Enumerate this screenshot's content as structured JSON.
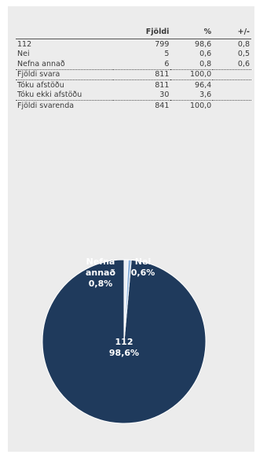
{
  "table": {
    "headers": [
      "",
      "Fjöldi",
      "%",
      "+/-"
    ],
    "rows": [
      {
        "label": "112",
        "count": "799",
        "pct": "98,6",
        "pm": "0,8"
      },
      {
        "label": "Nei",
        "count": "5",
        "pct": "0,6",
        "pm": "0,5"
      },
      {
        "label": "Nefna annað",
        "count": "6",
        "pct": "0,8",
        "pm": "0,6"
      },
      {
        "label": "Fjöldi svara",
        "count": "811",
        "pct": "100,0",
        "pm": ""
      },
      {
        "label": "Tóku afstöðu",
        "count": "811",
        "pct": "96,4",
        "pm": ""
      },
      {
        "label": "Tóku ekki afstöðu",
        "count": "30",
        "pct": "3,6",
        "pm": ""
      },
      {
        "label": "Fjöldi svarenda",
        "count": "841",
        "pct": "100,0",
        "pm": ""
      }
    ]
  },
  "chart_data": {
    "type": "pie",
    "slices": [
      {
        "label": "112",
        "value": 98.6,
        "text": "98,6%",
        "color": "#1f3a5c"
      },
      {
        "label": "Nefna annað",
        "value": 0.8,
        "text": "0,8%",
        "color": "#e8eef6"
      },
      {
        "label": "Nei",
        "value": 0.6,
        "text": "0,6%",
        "color": "#8fb3dc"
      }
    ]
  }
}
